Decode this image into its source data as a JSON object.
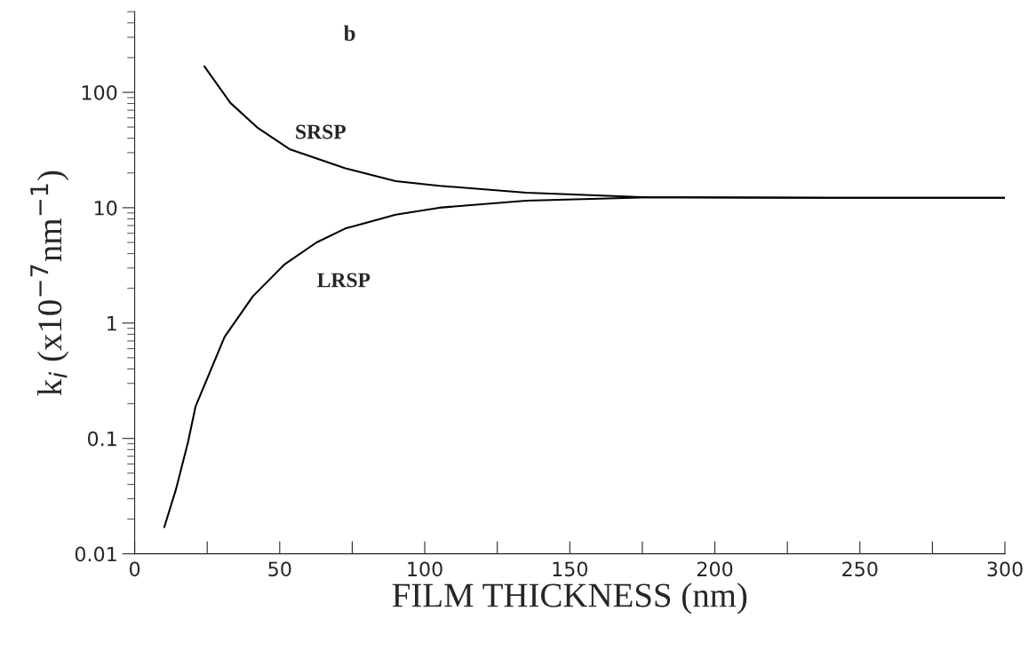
{
  "chart_data": {
    "type": "line",
    "xlabel": "FILM THICKNESS (nm)",
    "ylabel": "k$_{i}$ (x10$^{−7}$nm$^{−1}$)",
    "log": "y",
    "xlim": [
      0,
      300
    ],
    "xticks": [
      0,
      {
        "value": 25,
        "label": null
      },
      50,
      {
        "value": 75,
        "label": null
      },
      100,
      {
        "value": 125,
        "label": null
      },
      150,
      {
        "value": 175,
        "label": null
      },
      200,
      {
        "value": 225,
        "label": null
      },
      250,
      {
        "value": 275,
        "label": null
      },
      300
    ],
    "ylim": [
      0.01,
      500
    ],
    "yticks": [
      0.01,
      0.1,
      1,
      10,
      100
    ],
    "annotations": [
      "b"
    ],
    "grid": false,
    "legend": false,
    "marker": "none",
    "line_style": "solid",
    "series": [
      {
        "name": "SRSP",
        "color": "#000000",
        "x": [
          24,
          33,
          42.5,
          53.6,
          72.6,
          90,
          105,
          135,
          177,
          240,
          300
        ],
        "values": [
          168,
          81,
          49,
          32,
          22,
          17,
          15.5,
          13.5,
          12.3,
          12.2,
          12.2
        ]
      },
      {
        "name": "LRSP",
        "color": "#000000",
        "x": [
          10.2,
          14.2,
          18.4,
          21,
          31,
          40.7,
          51.5,
          62.7,
          72.6,
          90,
          105,
          135,
          177,
          240,
          300
        ],
        "values": [
          0.017,
          0.036,
          0.093,
          0.19,
          0.76,
          1.7,
          3.2,
          5.0,
          6.6,
          8.7,
          10.0,
          11.5,
          12.3,
          12.2,
          12.2
        ]
      }
    ]
  }
}
